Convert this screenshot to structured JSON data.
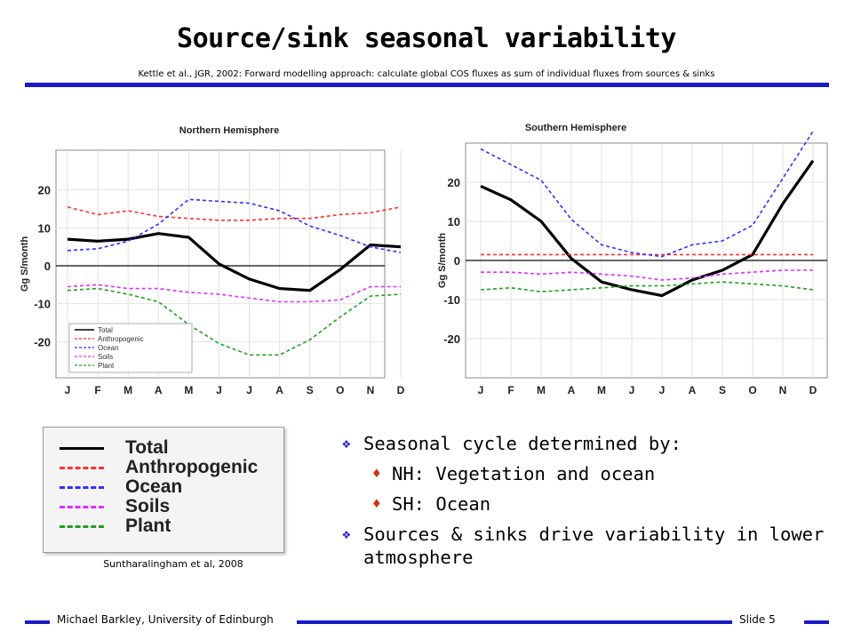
{
  "slide": {
    "title": "Source/sink seasonal variability",
    "subtitle": "Kettle et al., JGR, 2002: Forward modelling approach: calculate global COS fluxes as sum of individual fluxes from sources & sinks",
    "credit": "Suntharalingham et al, 2008",
    "footer_left": "Michael Barkley, University of Edinburgh",
    "footer_right": "Slide 5",
    "bullets": [
      {
        "text": "Seasonal cycle determined by:",
        "sub": [
          "NH: Vegetation and ocean",
          "SH: Ocean"
        ]
      },
      {
        "text": "Sources & sinks drive variability in lower atmosphere",
        "sub": []
      }
    ],
    "colors": {
      "accent": "#1a1ac8",
      "bullet_icon": "#2a2ad0",
      "sub_bullet_icon": "#d03010"
    }
  },
  "legend": {
    "entries": [
      {
        "name": "Total",
        "color": "#000000",
        "style": "solid"
      },
      {
        "name": "Anthropogenic",
        "color": "#ff3030",
        "style": "dashed"
      },
      {
        "name": "Ocean",
        "color": "#3030ff",
        "style": "dashed"
      },
      {
        "name": "Soils",
        "color": "#dd30ff",
        "style": "dashed"
      },
      {
        "name": "Plant",
        "color": "#20a020",
        "style": "dashed"
      }
    ]
  },
  "chart_data": [
    {
      "type": "line",
      "title": "Northern Hemisphere",
      "ylabel": "Gg S/month",
      "categories": [
        "J",
        "F",
        "M",
        "A",
        "M",
        "J",
        "J",
        "A",
        "S",
        "O",
        "N",
        "D"
      ],
      "ylim": [
        -30,
        30
      ],
      "yticks": [
        20,
        10,
        0,
        -10,
        -20
      ],
      "legend_placement": "bottom-left",
      "series": [
        {
          "name": "Total",
          "color": "#000000",
          "dash": "solid",
          "values": [
            7,
            6.5,
            7,
            8.5,
            7.5,
            0.5,
            -3.5,
            -6,
            -6.5,
            -1,
            5.5,
            5
          ]
        },
        {
          "name": "Anthropogenic",
          "color": "#ff3030",
          "dash": "dashed",
          "values": [
            15.5,
            13.5,
            14.5,
            13,
            12.5,
            12,
            12,
            12.5,
            12.5,
            13.5,
            14,
            15.5
          ]
        },
        {
          "name": "Ocean",
          "color": "#3030ff",
          "dash": "dashed",
          "values": [
            4,
            4.5,
            6.5,
            11,
            17.5,
            17,
            16.5,
            14.5,
            10.5,
            8,
            5,
            3.5
          ]
        },
        {
          "name": "Soils",
          "color": "#dd30ff",
          "dash": "dashed",
          "values": [
            -5.5,
            -5,
            -6,
            -6,
            -7,
            -7.5,
            -8.5,
            -9.5,
            -9.5,
            -9,
            -5.5,
            -5.5
          ]
        },
        {
          "name": "Plant",
          "color": "#20a020",
          "dash": "dashed",
          "values": [
            -6.5,
            -6,
            -7.5,
            -9.5,
            -15.5,
            -20.5,
            -23.5,
            -23.5,
            -19.5,
            -13.5,
            -8,
            -7.5
          ]
        }
      ]
    },
    {
      "type": "line",
      "title": "Southern Hemisphere",
      "ylabel": "Gg S/month",
      "categories": [
        "J",
        "F",
        "M",
        "A",
        "M",
        "J",
        "J",
        "A",
        "S",
        "O",
        "N",
        "D"
      ],
      "ylim": [
        -30,
        30
      ],
      "yticks": [
        20,
        10,
        0,
        -10,
        -20
      ],
      "series": [
        {
          "name": "Total",
          "color": "#000000",
          "dash": "solid",
          "values": [
            19,
            15.5,
            10,
            0.5,
            -5.5,
            -7.5,
            -9,
            -5,
            -2.5,
            1.5,
            14.5,
            25.5
          ]
        },
        {
          "name": "Anthropogenic",
          "color": "#ff3030",
          "dash": "dashed",
          "values": [
            1.5,
            1.5,
            1.5,
            1.5,
            1.5,
            1.5,
            1.5,
            1.5,
            1.5,
            1.5,
            1.5,
            1.5
          ]
        },
        {
          "name": "Ocean",
          "color": "#3030ff",
          "dash": "dashed",
          "values": [
            28.5,
            24.5,
            20.5,
            10.5,
            4,
            2,
            1,
            4,
            5,
            9,
            21,
            33
          ]
        },
        {
          "name": "Soils",
          "color": "#dd30ff",
          "dash": "dashed",
          "values": [
            -3,
            -3,
            -3.5,
            -3,
            -3.5,
            -4,
            -5,
            -4.5,
            -3.5,
            -3,
            -2.5,
            -2.5
          ]
        },
        {
          "name": "Plant",
          "color": "#20a020",
          "dash": "dashed",
          "values": [
            -7.5,
            -7,
            -8,
            -7.5,
            -7,
            -6.5,
            -6.5,
            -6,
            -5.5,
            -6,
            -6.5,
            -7.5
          ]
        }
      ]
    }
  ]
}
